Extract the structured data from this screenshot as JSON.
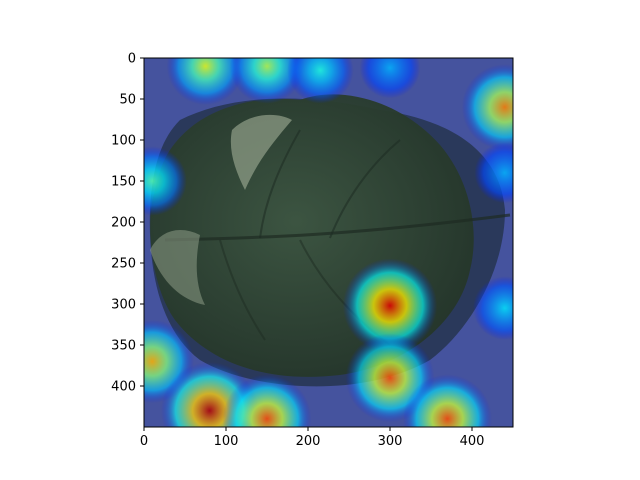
{
  "chart_data": {
    "type": "heatmap",
    "title": "",
    "xlabel": "",
    "ylabel": "",
    "xlim": [
      0,
      450
    ],
    "ylim": [
      450,
      0
    ],
    "x_ticks": [
      0,
      100,
      200,
      300,
      400
    ],
    "y_ticks": [
      0,
      50,
      100,
      150,
      200,
      250,
      300,
      350,
      400
    ],
    "x_tick_labels": [
      "0",
      "100",
      "200",
      "300",
      "400"
    ],
    "y_tick_labels": [
      "0",
      "50",
      "100",
      "150",
      "200",
      "250",
      "300",
      "350",
      "400"
    ],
    "colormap": "jet",
    "overlay_alpha": 0.5,
    "background_image": "leaf-photo",
    "hotspots": [
      {
        "x": 75,
        "y": 10,
        "intensity": 0.6
      },
      {
        "x": 150,
        "y": 10,
        "intensity": 0.55
      },
      {
        "x": 215,
        "y": 15,
        "intensity": 0.4
      },
      {
        "x": 300,
        "y": 12,
        "intensity": 0.3
      },
      {
        "x": 440,
        "y": 60,
        "intensity": 0.75
      },
      {
        "x": 10,
        "y": 150,
        "intensity": 0.45
      },
      {
        "x": 440,
        "y": 140,
        "intensity": 0.3
      },
      {
        "x": 300,
        "y": 302,
        "intensity": 0.9
      },
      {
        "x": 10,
        "y": 370,
        "intensity": 0.7
      },
      {
        "x": 80,
        "y": 430,
        "intensity": 0.95
      },
      {
        "x": 150,
        "y": 440,
        "intensity": 0.8
      },
      {
        "x": 300,
        "y": 390,
        "intensity": 0.8
      },
      {
        "x": 370,
        "y": 440,
        "intensity": 0.8
      },
      {
        "x": 440,
        "y": 305,
        "intensity": 0.35
      }
    ]
  }
}
